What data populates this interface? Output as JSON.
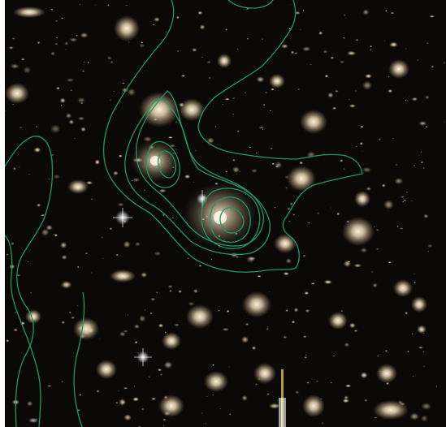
{
  "image": {
    "kind": "astronomical-image",
    "colors": {
      "sky": "#0b0908",
      "galaxy": "#f3e6c8",
      "galaxy_halo": "#c9b48f",
      "contour": "#1f9a62",
      "star_trail": "#d8b53a",
      "border": "#ffffff"
    }
  }
}
